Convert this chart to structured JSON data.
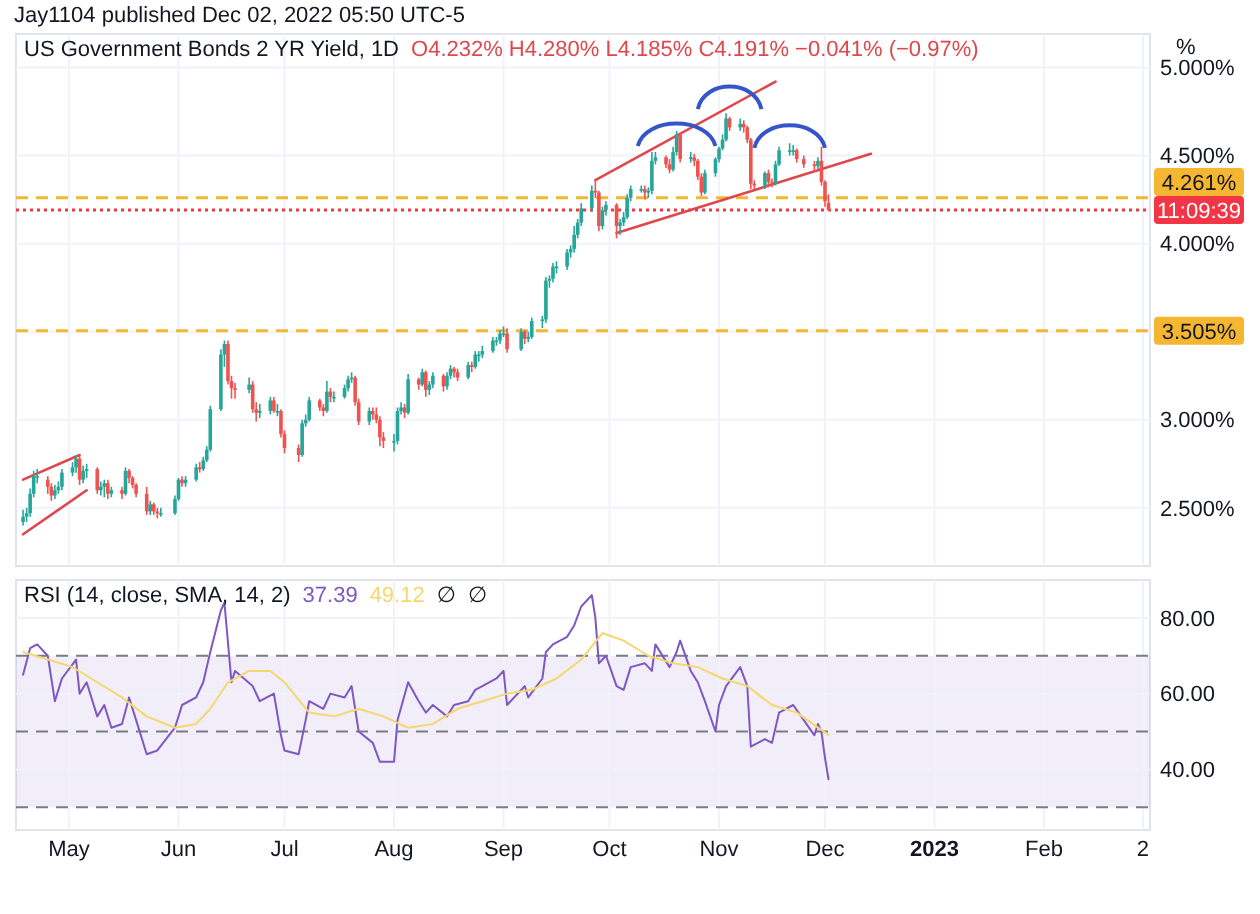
{
  "chart_data": [
    {
      "type": "candlestick",
      "title": "US Government Bonds 2 YR Yield, 1D",
      "subtitle": "O4.232% H4.280% L4.185% C4.191% −0.041% (−0.97%)",
      "annotations": [
        "Jay1104 published Dec 02, 2022 05:50 UTC-5",
        "11:09:39"
      ],
      "ylabel": "%",
      "colors": [
        "#26a69a",
        "#26a69a",
        "#26a69a",
        "#26a69a",
        "#26a69a",
        "#ef5350",
        "#ef5350",
        "#26a69a",
        "#26a69a",
        "#26a69a",
        "#26a69a",
        "#26a69a",
        "#ef5350",
        "#26a69a",
        "#26a69a",
        "#ef5350",
        "#26a69a",
        "#26a69a",
        "#ef5350",
        "#26a69a",
        "#ef5350",
        "#26a69a",
        "#ef5350",
        "#ef5350",
        "#ef5350",
        "#ef5350",
        "#26a69a",
        "#ef5350",
        "#ef5350",
        "#26a69a",
        "#26a69a",
        "#26a69a",
        "#ef5350",
        "#26a69a",
        "#26a69a",
        "#ef5350",
        "#26a69a",
        "#26a69a",
        "#26a69a",
        "#26a69a",
        "#26a69a",
        "#ef5350",
        "#ef5350",
        "#ef5350",
        "#26a69a",
        "#ef5350",
        "#ef5350",
        "#26a69a",
        "#26a69a",
        "#ef5350",
        "#26a69a",
        "#ef5350",
        "#ef5350",
        "#ef5350",
        "#26a69a",
        "#26a69a",
        "#26a69a",
        "#ef5350",
        "#ef5350",
        "#26a69a",
        "#ef5350",
        "#26a69a",
        "#26a69a",
        "#26a69a",
        "#26a69a",
        "#ef5350",
        "#ef5350",
        "#26a69a",
        "#ef5350",
        "#ef5350",
        "#ef5350",
        "#ef5350",
        "#26a69a",
        "#26a69a",
        "#26a69a",
        "#ef5350",
        "#26a69a",
        "#ef5350",
        "#26a69a",
        "#ef5350",
        "#26a69a",
        "#26a69a",
        "#ef5350",
        "#26a69a",
        "#26a69a",
        "#ef5350",
        "#ef5350",
        "#26a69a",
        "#ef5350",
        "#26a69a",
        "#26a69a",
        "#26a69a",
        "#26a69a",
        "#26a69a",
        "#26a69a",
        "#26a69a",
        "#ef5350",
        "#26a69a",
        "#ef5350",
        "#26a69a",
        "#26a69a",
        "#26a69a",
        "#26a69a",
        "#26a69a",
        "#26a69a",
        "#26a69a",
        "#26a69a",
        "#26a69a",
        "#26a69a",
        "#26a69a",
        "#26a69a",
        "#26a69a",
        "#ef5350",
        "#ef5350",
        "#26a69a",
        "#26a69a",
        "#ef5350",
        "#26a69a",
        "#26a69a",
        "#26a69a",
        "#26a69a",
        "#26a69a",
        "#ef5350",
        "#26a69a",
        "#26a69a",
        "#26a69a",
        "#ef5350",
        "#ef5350",
        "#26a69a",
        "#26a69a",
        "#ef5350",
        "#26a69a",
        "#ef5350",
        "#ef5350",
        "#ef5350",
        "#26a69a",
        "#26a69a",
        "#26a69a",
        "#26a69a",
        "#26a69a",
        "#ef5350",
        "#26a69a",
        "#ef5350",
        "#ef5350",
        "#ef5350",
        "#ef5350",
        "#26a69a",
        "#ef5350",
        "#ef5350",
        "#26a69a",
        "#26a69a",
        "#26a69a",
        "#26a69a",
        "#ef5350",
        "#ef5350",
        "#ef5350",
        "#26a69a",
        "#ef5350",
        "#ef5350",
        "#ef5350"
      ],
      "x": [
        "2022-04-18",
        "2022-04-19",
        "2022-04-20",
        "2022-04-21",
        "2022-04-22",
        "2022-04-25",
        "2022-04-26",
        "2022-04-27",
        "2022-04-28",
        "2022-04-29",
        "2022-05-02",
        "2022-05-03",
        "2022-05-04",
        "2022-05-05",
        "2022-05-06",
        "2022-05-09",
        "2022-05-10",
        "2022-05-11",
        "2022-05-12",
        "2022-05-13",
        "2022-05-16",
        "2022-05-17",
        "2022-05-18",
        "2022-05-19",
        "2022-05-20",
        "2022-05-23",
        "2022-05-24",
        "2022-05-25",
        "2022-05-26",
        "2022-05-27",
        "2022-05-31",
        "2022-06-01",
        "2022-06-02",
        "2022-06-03",
        "2022-06-06",
        "2022-06-07",
        "2022-06-08",
        "2022-06-09",
        "2022-06-10",
        "2022-06-13",
        "2022-06-14",
        "2022-06-15",
        "2022-06-16",
        "2022-06-17",
        "2022-06-21",
        "2022-06-22",
        "2022-06-23",
        "2022-06-24",
        "2022-06-27",
        "2022-06-28",
        "2022-06-29",
        "2022-06-30",
        "2022-07-01",
        "2022-07-05",
        "2022-07-06",
        "2022-07-07",
        "2022-07-08",
        "2022-07-11",
        "2022-07-12",
        "2022-07-13",
        "2022-07-14",
        "2022-07-15",
        "2022-07-18",
        "2022-07-19",
        "2022-07-20",
        "2022-07-21",
        "2022-07-22",
        "2022-07-25",
        "2022-07-26",
        "2022-07-27",
        "2022-07-28",
        "2022-07-29",
        "2022-08-01",
        "2022-08-02",
        "2022-08-03",
        "2022-08-04",
        "2022-08-05",
        "2022-08-08",
        "2022-08-09",
        "2022-08-10",
        "2022-08-11",
        "2022-08-12",
        "2022-08-15",
        "2022-08-16",
        "2022-08-17",
        "2022-08-18",
        "2022-08-19",
        "2022-08-22",
        "2022-08-23",
        "2022-08-24",
        "2022-08-25",
        "2022-08-26",
        "2022-08-29",
        "2022-08-30",
        "2022-08-31",
        "2022-09-01",
        "2022-09-02",
        "2022-09-06",
        "2022-09-07",
        "2022-09-08",
        "2022-09-09",
        "2022-09-12",
        "2022-09-13",
        "2022-09-14",
        "2022-09-15",
        "2022-09-16",
        "2022-09-19",
        "2022-09-20",
        "2022-09-21",
        "2022-09-22",
        "2022-09-23",
        "2022-09-26",
        "2022-09-27",
        "2022-09-28",
        "2022-09-29",
        "2022-09-30",
        "2022-10-03",
        "2022-10-04",
        "2022-10-05",
        "2022-10-06",
        "2022-10-07",
        "2022-10-10",
        "2022-10-11",
        "2022-10-12",
        "2022-10-13",
        "2022-10-14",
        "2022-10-17",
        "2022-10-18",
        "2022-10-19",
        "2022-10-20",
        "2022-10-21",
        "2022-10-24",
        "2022-10-25",
        "2022-10-26",
        "2022-10-27",
        "2022-10-28",
        "2022-10-31",
        "2022-11-01",
        "2022-11-02",
        "2022-11-03",
        "2022-11-04",
        "2022-11-07",
        "2022-11-08",
        "2022-11-09",
        "2022-11-10",
        "2022-11-11",
        "2022-11-14",
        "2022-11-15",
        "2022-11-16",
        "2022-11-17",
        "2022-11-18",
        "2022-11-21",
        "2022-11-22",
        "2022-11-23",
        "2022-11-25",
        "2022-11-28",
        "2022-11-29",
        "2022-11-30",
        "2022-12-01",
        "2022-12-02"
      ],
      "ohlc": [
        [
          2.42,
          2.49,
          2.4,
          2.45
        ],
        [
          2.45,
          2.5,
          2.42,
          2.47
        ],
        [
          2.47,
          2.61,
          2.45,
          2.58
        ],
        [
          2.58,
          2.71,
          2.56,
          2.68
        ],
        [
          2.68,
          2.72,
          2.64,
          2.68
        ],
        [
          2.66,
          2.68,
          2.58,
          2.62
        ],
        [
          2.62,
          2.64,
          2.54,
          2.57
        ],
        [
          2.57,
          2.63,
          2.55,
          2.6
        ],
        [
          2.6,
          2.65,
          2.58,
          2.62
        ],
        [
          2.62,
          2.72,
          2.6,
          2.7
        ],
        [
          2.7,
          2.76,
          2.68,
          2.73
        ],
        [
          2.73,
          2.8,
          2.7,
          2.78
        ],
        [
          2.78,
          2.8,
          2.63,
          2.66
        ],
        [
          2.66,
          2.74,
          2.64,
          2.71
        ],
        [
          2.71,
          2.75,
          2.67,
          2.72
        ],
        [
          2.72,
          2.73,
          2.58,
          2.6
        ],
        [
          2.6,
          2.65,
          2.57,
          2.62
        ],
        [
          2.62,
          2.66,
          2.56,
          2.64
        ],
        [
          2.64,
          2.66,
          2.55,
          2.58
        ],
        [
          2.58,
          2.62,
          2.56,
          2.6
        ],
        [
          2.6,
          2.62,
          2.55,
          2.58
        ],
        [
          2.58,
          2.73,
          2.57,
          2.71
        ],
        [
          2.71,
          2.72,
          2.64,
          2.67
        ],
        [
          2.67,
          2.68,
          2.61,
          2.63
        ],
        [
          2.63,
          2.64,
          2.56,
          2.58
        ],
        [
          2.58,
          2.62,
          2.46,
          2.48
        ],
        [
          2.48,
          2.54,
          2.46,
          2.52
        ],
        [
          2.52,
          2.53,
          2.46,
          2.48
        ],
        [
          2.48,
          2.5,
          2.44,
          2.47
        ],
        [
          2.47,
          2.5,
          2.45,
          2.47
        ],
        [
          2.47,
          2.57,
          2.46,
          2.55
        ],
        [
          2.55,
          2.67,
          2.54,
          2.66
        ],
        [
          2.66,
          2.68,
          2.62,
          2.64
        ],
        [
          2.64,
          2.68,
          2.62,
          2.66
        ],
        [
          2.66,
          2.75,
          2.65,
          2.73
        ],
        [
          2.73,
          2.76,
          2.7,
          2.72
        ],
        [
          2.72,
          2.79,
          2.71,
          2.77
        ],
        [
          2.77,
          2.85,
          2.76,
          2.83
        ],
        [
          2.83,
          3.08,
          2.82,
          3.06
        ],
        [
          3.06,
          3.4,
          3.05,
          3.37
        ],
        [
          3.37,
          3.45,
          3.3,
          3.43
        ],
        [
          3.43,
          3.45,
          3.2,
          3.22
        ],
        [
          3.22,
          3.25,
          3.12,
          3.18
        ],
        [
          3.18,
          3.21,
          3.12,
          3.17
        ],
        [
          3.17,
          3.24,
          3.15,
          3.2
        ],
        [
          3.2,
          3.22,
          3.04,
          3.06
        ],
        [
          3.06,
          3.1,
          2.99,
          3.04
        ],
        [
          3.04,
          3.09,
          3.01,
          3.05
        ],
        [
          3.05,
          3.13,
          3.03,
          3.11
        ],
        [
          3.11,
          3.13,
          3.04,
          3.05
        ],
        [
          3.05,
          3.09,
          3.02,
          3.05
        ],
        [
          3.05,
          3.06,
          2.9,
          2.92
        ],
        [
          2.92,
          2.94,
          2.81,
          2.84
        ],
        [
          2.84,
          2.86,
          2.76,
          2.8
        ],
        [
          2.8,
          3.0,
          2.79,
          2.98
        ],
        [
          2.98,
          3.03,
          2.96,
          3.0
        ],
        [
          3.0,
          3.13,
          2.99,
          3.11
        ],
        [
          3.11,
          3.12,
          3.05,
          3.07
        ],
        [
          3.07,
          3.09,
          3.02,
          3.05
        ],
        [
          3.05,
          3.22,
          3.04,
          3.16
        ],
        [
          3.16,
          3.18,
          3.1,
          3.13
        ],
        [
          3.13,
          3.16,
          3.1,
          3.13
        ],
        [
          3.13,
          3.2,
          3.12,
          3.18
        ],
        [
          3.18,
          3.25,
          3.16,
          3.23
        ],
        [
          3.23,
          3.27,
          3.21,
          3.24
        ],
        [
          3.24,
          3.25,
          3.08,
          3.1
        ],
        [
          3.1,
          3.12,
          2.97,
          2.99
        ],
        [
          2.99,
          3.07,
          2.97,
          3.05
        ],
        [
          3.05,
          3.07,
          3.0,
          3.03
        ],
        [
          3.03,
          3.07,
          2.98,
          3.0
        ],
        [
          3.0,
          3.02,
          2.85,
          2.9
        ],
        [
          2.9,
          2.93,
          2.84,
          2.88
        ],
        [
          2.88,
          2.92,
          2.82,
          2.88
        ],
        [
          2.88,
          3.07,
          2.86,
          3.05
        ],
        [
          3.05,
          3.1,
          3.03,
          3.07
        ],
        [
          3.07,
          3.09,
          3.01,
          3.04
        ],
        [
          3.04,
          3.26,
          3.03,
          3.23
        ],
        [
          3.23,
          3.24,
          3.17,
          3.2
        ],
        [
          3.2,
          3.29,
          3.19,
          3.27
        ],
        [
          3.27,
          3.28,
          3.13,
          3.17
        ],
        [
          3.17,
          3.22,
          3.14,
          3.2
        ],
        [
          3.2,
          3.27,
          3.18,
          3.25
        ],
        [
          3.25,
          3.26,
          3.16,
          3.19
        ],
        [
          3.19,
          3.27,
          3.17,
          3.25
        ],
        [
          3.25,
          3.31,
          3.23,
          3.29
        ],
        [
          3.29,
          3.3,
          3.24,
          3.27
        ],
        [
          3.27,
          3.29,
          3.22,
          3.24
        ],
        [
          3.24,
          3.33,
          3.23,
          3.31
        ],
        [
          3.31,
          3.33,
          3.27,
          3.3
        ],
        [
          3.3,
          3.39,
          3.29,
          3.37
        ],
        [
          3.37,
          3.39,
          3.33,
          3.37
        ],
        [
          3.37,
          3.42,
          3.35,
          3.39
        ],
        [
          3.39,
          3.47,
          3.38,
          3.45
        ],
        [
          3.45,
          3.47,
          3.42,
          3.45
        ],
        [
          3.45,
          3.51,
          3.43,
          3.49
        ],
        [
          3.49,
          3.53,
          3.47,
          3.49
        ],
        [
          3.49,
          3.52,
          3.38,
          3.4
        ],
        [
          3.4,
          3.52,
          3.39,
          3.5
        ],
        [
          3.5,
          3.51,
          3.43,
          3.46
        ],
        [
          3.46,
          3.5,
          3.44,
          3.47
        ],
        [
          3.47,
          3.58,
          3.46,
          3.56
        ],
        [
          3.56,
          3.59,
          3.52,
          3.57
        ],
        [
          3.57,
          3.81,
          3.55,
          3.79
        ],
        [
          3.79,
          3.82,
          3.75,
          3.8
        ],
        [
          3.8,
          3.89,
          3.78,
          3.87
        ],
        [
          3.87,
          3.9,
          3.83,
          3.87
        ],
        [
          3.87,
          3.97,
          3.85,
          3.95
        ],
        [
          3.95,
          3.99,
          3.92,
          3.97
        ],
        [
          3.97,
          4.1,
          3.95,
          4.05
        ],
        [
          4.05,
          4.14,
          4.03,
          4.12
        ],
        [
          4.12,
          4.23,
          4.1,
          4.2
        ],
        [
          4.2,
          4.33,
          4.18,
          4.3
        ],
        [
          4.3,
          4.36,
          4.26,
          4.29
        ],
        [
          4.29,
          4.3,
          4.07,
          4.1
        ],
        [
          4.1,
          4.21,
          4.08,
          4.19
        ],
        [
          4.19,
          4.24,
          4.16,
          4.22
        ],
        [
          4.22,
          4.23,
          4.03,
          4.1
        ],
        [
          4.1,
          4.14,
          4.05,
          4.12
        ],
        [
          4.12,
          4.18,
          4.1,
          4.15
        ],
        [
          4.15,
          4.28,
          4.14,
          4.26
        ],
        [
          4.26,
          4.33,
          4.24,
          4.31
        ],
        [
          4.31,
          4.33,
          4.29,
          4.31
        ],
        [
          4.31,
          4.33,
          4.25,
          4.29
        ],
        [
          4.29,
          4.32,
          4.26,
          4.3
        ],
        [
          4.3,
          4.52,
          4.28,
          4.47
        ],
        [
          4.47,
          4.52,
          4.45,
          4.49
        ],
        [
          4.49,
          4.5,
          4.43,
          4.45
        ],
        [
          4.45,
          4.48,
          4.4,
          4.42
        ],
        [
          4.42,
          4.55,
          4.41,
          4.52
        ],
        [
          4.52,
          4.64,
          4.5,
          4.62
        ],
        [
          4.62,
          4.63,
          4.46,
          4.48
        ],
        [
          4.48,
          4.52,
          4.46,
          4.49
        ],
        [
          4.49,
          4.51,
          4.44,
          4.47
        ],
        [
          4.47,
          4.48,
          4.36,
          4.38
        ],
        [
          4.38,
          4.4,
          4.27,
          4.29
        ],
        [
          4.29,
          4.42,
          4.28,
          4.4
        ],
        [
          4.4,
          4.49,
          4.38,
          4.48
        ],
        [
          4.48,
          4.55,
          4.46,
          4.54
        ],
        [
          4.54,
          4.62,
          4.53,
          4.59
        ],
        [
          4.59,
          4.74,
          4.58,
          4.71
        ],
        [
          4.71,
          4.72,
          4.64,
          4.66
        ],
        [
          4.66,
          4.71,
          4.64,
          4.68
        ],
        [
          4.68,
          4.7,
          4.63,
          4.66
        ],
        [
          4.66,
          4.67,
          4.57,
          4.59
        ],
        [
          4.59,
          4.6,
          4.31,
          4.34
        ],
        [
          4.34,
          4.36,
          4.31,
          4.33
        ],
        [
          4.33,
          4.41,
          4.31,
          4.4
        ],
        [
          4.4,
          4.42,
          4.32,
          4.35
        ],
        [
          4.35,
          4.37,
          4.32,
          4.34
        ],
        [
          4.34,
          4.47,
          4.33,
          4.45
        ],
        [
          4.45,
          4.55,
          4.44,
          4.53
        ],
        [
          4.53,
          4.57,
          4.5,
          4.53
        ],
        [
          4.53,
          4.56,
          4.5,
          4.53
        ],
        [
          4.53,
          4.54,
          4.46,
          4.48
        ],
        [
          4.48,
          4.5,
          4.43,
          4.45
        ],
        [
          4.45,
          4.47,
          4.41,
          4.44
        ],
        [
          4.44,
          4.49,
          4.42,
          4.47
        ],
        [
          4.47,
          4.55,
          4.33,
          4.35
        ],
        [
          4.35,
          4.36,
          4.21,
          4.24
        ],
        [
          4.232,
          4.28,
          4.185,
          4.191
        ]
      ],
      "series": [
        {
          "type": "line",
          "color": "#e0474c",
          "x": [
            "2022-04-18",
            "2022-05-04"
          ],
          "values": [
            2.66,
            2.8
          ]
        },
        {
          "type": "line",
          "color": "#e0474c",
          "x": [
            "2022-04-18",
            "2022-05-06"
          ],
          "values": [
            2.35,
            2.6
          ]
        },
        {
          "type": "line",
          "color": "#e0474c",
          "x": [
            "2022-09-27",
            "2022-11-17"
          ],
          "values": [
            4.36,
            4.92
          ]
        },
        {
          "type": "line",
          "color": "#e0474c",
          "x": [
            "2022-10-03",
            "2022-12-14"
          ],
          "values": [
            4.06,
            4.51
          ]
        }
      ],
      "ref_lines": [
        {
          "axis": "y",
          "value": 4.261,
          "label": "4.261%",
          "color": "#f5b731",
          "line_style": "dashed"
        },
        {
          "axis": "y",
          "value": 3.505,
          "label": "3.505%",
          "color": "#f5b731",
          "line_style": "dashed"
        },
        {
          "axis": "y",
          "value": 4.191,
          "color": "#f23645",
          "line_style": "dotted"
        }
      ],
      "xlim": [
        "2022-04-16",
        "2023-03-03"
      ],
      "xticks": [
        {
          "value": "2022-05-01",
          "label": null
        },
        {
          "value": "2022-06-01",
          "label": null
        },
        {
          "value": "2022-07-01",
          "label": null
        },
        {
          "value": "2022-08-01",
          "label": null
        },
        {
          "value": "2022-09-01",
          "label": null
        },
        {
          "value": "2022-10-01",
          "label": null
        },
        {
          "value": "2022-11-01",
          "label": null
        },
        {
          "value": "2022-12-01",
          "label": null
        },
        {
          "value": "2023-01-01",
          "label": null
        },
        {
          "value": "2023-02-01",
          "label": null
        },
        {
          "value": "2023-03-01",
          "label": null
        }
      ],
      "ylim": [
        2.17,
        5.19
      ],
      "yticks": [
        {
          "value": 2.5,
          "label": "2.500%"
        },
        {
          "value": 3,
          "label": "3.000%"
        },
        {
          "value": 3.5,
          "label": null
        },
        {
          "value": 4,
          "label": "4.000%"
        },
        {
          "value": 4.5,
          "label": "4.500%"
        },
        {
          "value": 5,
          "label": "5.000%"
        }
      ],
      "grid": true,
      "tick_labels": "y",
      "legend": false
    },
    {
      "type": "line",
      "title": "RSI (14, close, SMA, 14, 2)",
      "annotations": [
        "37.39",
        "49.12",
        "∅",
        "∅"
      ],
      "series": [
        {
          "color": "#7e57c2",
          "x": [
            "2022-04-18",
            "2022-04-20",
            "2022-04-22",
            "2022-04-25",
            "2022-04-27",
            "2022-04-29",
            "2022-05-03",
            "2022-05-04",
            "2022-05-06",
            "2022-05-09",
            "2022-05-11",
            "2022-05-13",
            "2022-05-16",
            "2022-05-18",
            "2022-05-20",
            "2022-05-23",
            "2022-05-26",
            "2022-05-31",
            "2022-06-02",
            "2022-06-06",
            "2022-06-08",
            "2022-06-10",
            "2022-06-13",
            "2022-06-14",
            "2022-06-16",
            "2022-06-17",
            "2022-06-22",
            "2022-06-24",
            "2022-06-28",
            "2022-06-30",
            "2022-07-01",
            "2022-07-05",
            "2022-07-07",
            "2022-07-08",
            "2022-07-12",
            "2022-07-14",
            "2022-07-18",
            "2022-07-20",
            "2022-07-22",
            "2022-07-26",
            "2022-07-28",
            "2022-08-01",
            "2022-08-02",
            "2022-08-05",
            "2022-08-08",
            "2022-08-10",
            "2022-08-12",
            "2022-08-16",
            "2022-08-18",
            "2022-08-22",
            "2022-08-24",
            "2022-08-26",
            "2022-08-30",
            "2022-09-01",
            "2022-09-02",
            "2022-09-07",
            "2022-09-08",
            "2022-09-12",
            "2022-09-13",
            "2022-09-15",
            "2022-09-19",
            "2022-09-21",
            "2022-09-23",
            "2022-09-26",
            "2022-09-27",
            "2022-09-28",
            "2022-09-30",
            "2022-10-03",
            "2022-10-05",
            "2022-10-07",
            "2022-10-11",
            "2022-10-13",
            "2022-10-14",
            "2022-10-18",
            "2022-10-20",
            "2022-10-21",
            "2022-10-24",
            "2022-10-26",
            "2022-10-28",
            "2022-10-31",
            "2022-11-01",
            "2022-11-03",
            "2022-11-07",
            "2022-11-09",
            "2022-11-10",
            "2022-11-14",
            "2022-11-16",
            "2022-11-18",
            "2022-11-22",
            "2022-11-25",
            "2022-11-28",
            "2022-11-29",
            "2022-11-30",
            "2022-12-01",
            "2022-12-02"
          ],
          "values": [
            65,
            72,
            73,
            70,
            58,
            64,
            69,
            60,
            63,
            54,
            57,
            51,
            52,
            59,
            53,
            44,
            45,
            51,
            57,
            59,
            63,
            71,
            82,
            84,
            63,
            66,
            62,
            58,
            60,
            49,
            45,
            44,
            53,
            58,
            56,
            60,
            59,
            62,
            50,
            47,
            42,
            42,
            53,
            63,
            58,
            55,
            57,
            54,
            57,
            58,
            61,
            62,
            64,
            66,
            57,
            62,
            59,
            64,
            71,
            73,
            75,
            78,
            83,
            86,
            80,
            68,
            70,
            62,
            61,
            67,
            68,
            66,
            73,
            67,
            71,
            74,
            66,
            63,
            58,
            50,
            57,
            62,
            67,
            62,
            46,
            48,
            47,
            55,
            57,
            53,
            49,
            52,
            50,
            43,
            37.39
          ]
        },
        {
          "color": "#f5d76e",
          "x": [
            "2022-04-18",
            "2022-04-25",
            "2022-05-02",
            "2022-05-09",
            "2022-05-16",
            "2022-05-23",
            "2022-05-31",
            "2022-06-06",
            "2022-06-10",
            "2022-06-15",
            "2022-06-21",
            "2022-06-27",
            "2022-07-01",
            "2022-07-08",
            "2022-07-15",
            "2022-07-22",
            "2022-07-29",
            "2022-08-05",
            "2022-08-12",
            "2022-08-19",
            "2022-08-26",
            "2022-09-02",
            "2022-09-09",
            "2022-09-16",
            "2022-09-23",
            "2022-09-29",
            "2022-10-05",
            "2022-10-12",
            "2022-10-19",
            "2022-10-26",
            "2022-11-02",
            "2022-11-09",
            "2022-11-16",
            "2022-11-23",
            "2022-12-02"
          ],
          "values": [
            71,
            69,
            67,
            63,
            59,
            54,
            51,
            52,
            56,
            63,
            66,
            66,
            63,
            55,
            54,
            56,
            54,
            51,
            52,
            56,
            58,
            60,
            61,
            64,
            69,
            76,
            74,
            70,
            68,
            67,
            64,
            62,
            57,
            55,
            49.12
          ]
        }
      ],
      "ref_lines": [
        {
          "axis": "y",
          "value": 70,
          "color": "#787b86",
          "line_style": "dashed"
        },
        {
          "axis": "y",
          "value": 50,
          "color": "#787b86",
          "line_style": "dashed"
        },
        {
          "axis": "y",
          "value": 30,
          "color": "#787b86",
          "line_style": "dashed"
        }
      ],
      "bands": [
        {
          "axis": "y",
          "from": 30,
          "to": 70,
          "color": "#7e57c2"
        }
      ],
      "xlim": [
        "2022-04-16",
        "2023-03-03"
      ],
      "xticks": [
        {
          "value": "2022-05-01",
          "label": "May"
        },
        {
          "value": "2022-06-01",
          "label": "Jun"
        },
        {
          "value": "2022-07-01",
          "label": "Jul"
        },
        {
          "value": "2022-08-01",
          "label": "Aug"
        },
        {
          "value": "2022-09-01",
          "label": "Sep"
        },
        {
          "value": "2022-10-01",
          "label": "Oct"
        },
        {
          "value": "2022-11-01",
          "label": "Nov"
        },
        {
          "value": "2022-12-01",
          "label": "Dec"
        },
        {
          "value": "2023-01-01",
          "label": "2023"
        },
        {
          "value": "2023-02-01",
          "label": "Feb"
        },
        {
          "value": "2023-03-01",
          "label": "2"
        }
      ],
      "ylim": [
        24,
        90
      ],
      "yticks": [
        {
          "value": 40,
          "label": "40.00"
        },
        {
          "value": 60,
          "label": "60.00"
        },
        {
          "value": 80,
          "label": "80.00"
        }
      ],
      "grid": true,
      "legend": false
    }
  ]
}
